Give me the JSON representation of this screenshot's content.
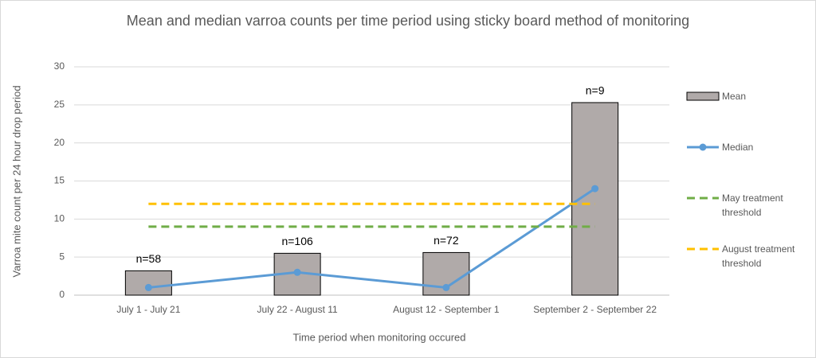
{
  "chart_data": {
    "type": "combo",
    "title": "Mean and median varroa counts per time period using sticky board method of monitoring",
    "x_label": "Time period when monitoring occured",
    "y_label": "Varroa mite count per 24 hour drop period",
    "categories": [
      "July 1 - July 21",
      "July 22 - August 11",
      "August 12 - September 1",
      "September 2 - September 22"
    ],
    "series": [
      {
        "name": "Mean",
        "type": "bar",
        "color": "#b0aaa9",
        "values": [
          3.2,
          5.5,
          5.6,
          25.3
        ]
      },
      {
        "name": "Median",
        "type": "line",
        "color": "#5b9bd5",
        "marker": true,
        "dashed": false,
        "values": [
          1,
          3,
          1,
          14
        ]
      },
      {
        "name": "May treatment threshold",
        "type": "line",
        "color": "#70ad47",
        "marker": false,
        "dashed": true,
        "values": [
          9,
          9,
          9,
          9
        ]
      },
      {
        "name": "August treatment threshold",
        "type": "line",
        "color": "#ffc000",
        "marker": false,
        "dashed": true,
        "values": [
          12,
          12,
          12,
          12
        ]
      }
    ],
    "annotations": [
      "n=58",
      "n=106",
      "n=72",
      "n=9"
    ],
    "ylim": [
      0,
      30
    ],
    "yticks": [
      0,
      5,
      10,
      15,
      20,
      25,
      30
    ],
    "grid": true,
    "legend": "right"
  }
}
